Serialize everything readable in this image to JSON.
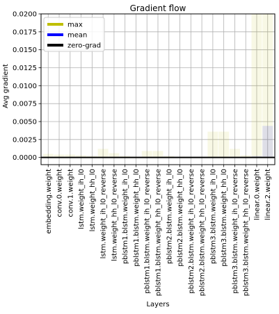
{
  "chart_data": {
    "type": "bar",
    "title": "Gradient flow",
    "xlabel": "Layers",
    "ylabel": "Avg gradient",
    "ylim": [
      -0.001,
      0.02
    ],
    "yticks": [
      0.0,
      0.0025,
      0.005,
      0.0075,
      0.01,
      0.0125,
      0.015,
      0.0175,
      0.02
    ],
    "ytick_labels": [
      "0.0000",
      "0.0025",
      "0.0050",
      "0.0075",
      "0.0100",
      "0.0125",
      "0.0150",
      "0.0175",
      "0.0200"
    ],
    "grid": true,
    "legend_position": "top-left",
    "categories": [
      "embedding.weight",
      "conv.0.weight",
      "conv.1.weight",
      "lstm.weight_ih_l0",
      "lstm.weight_hh_l0",
      "lstm.weight_ih_l0_reverse",
      "lstm.weight_hh_l0_reverse",
      "pblstm1.blstm.weight_ih_l0",
      "pblstm1.blstm.weight_hh_l0",
      "pblstm1.blstm.weight_ih_l0_reverse",
      "pblstm1.blstm.weight_hh_l0_reverse",
      "pblstm2.blstm.weight_ih_l0",
      "pblstm2.blstm.weight_hh_l0",
      "pblstm2.blstm.weight_ih_l0_reverse",
      "pblstm2.blstm.weight_hh_l0_reverse",
      "pblstm3.blstm.weight_ih_l0",
      "pblstm3.blstm.weight_hh_l0",
      "pblstm3.blstm.weight_ih_l0_reverse",
      "pblstm3.blstm.weight_hh_l0_reverse",
      "linear.0.weight",
      "linear.2.weight"
    ],
    "series": [
      {
        "name": "max",
        "color": "#bfbf00",
        "values": [
          0.0005,
          0.0004,
          0.0004,
          0.0003,
          0.0002,
          0.0012,
          0.0006,
          0.0002,
          0.0001,
          0.0009,
          0.0009,
          0.0002,
          0.0001,
          0.0001,
          0.0001,
          0.0036,
          0.0036,
          0.0012,
          0.0003,
          0.02,
          0.02
        ]
      },
      {
        "name": "mean",
        "color": "#0000ff",
        "values": [
          2e-05,
          1e-05,
          1e-05,
          1e-05,
          1e-05,
          2e-05,
          1e-05,
          1e-05,
          1e-05,
          1e-05,
          1e-05,
          1e-05,
          1e-05,
          1e-05,
          1e-05,
          3e-05,
          3e-05,
          2e-05,
          1e-05,
          0.0002,
          0.0044
        ]
      }
    ],
    "zero_line": {
      "name": "zero-grad",
      "color": "#000000",
      "value": 0
    },
    "legend": [
      {
        "label": "max",
        "color": "#bfbf00"
      },
      {
        "label": "mean",
        "color": "#0000ff"
      },
      {
        "label": "zero-grad",
        "color": "#000000"
      }
    ]
  }
}
